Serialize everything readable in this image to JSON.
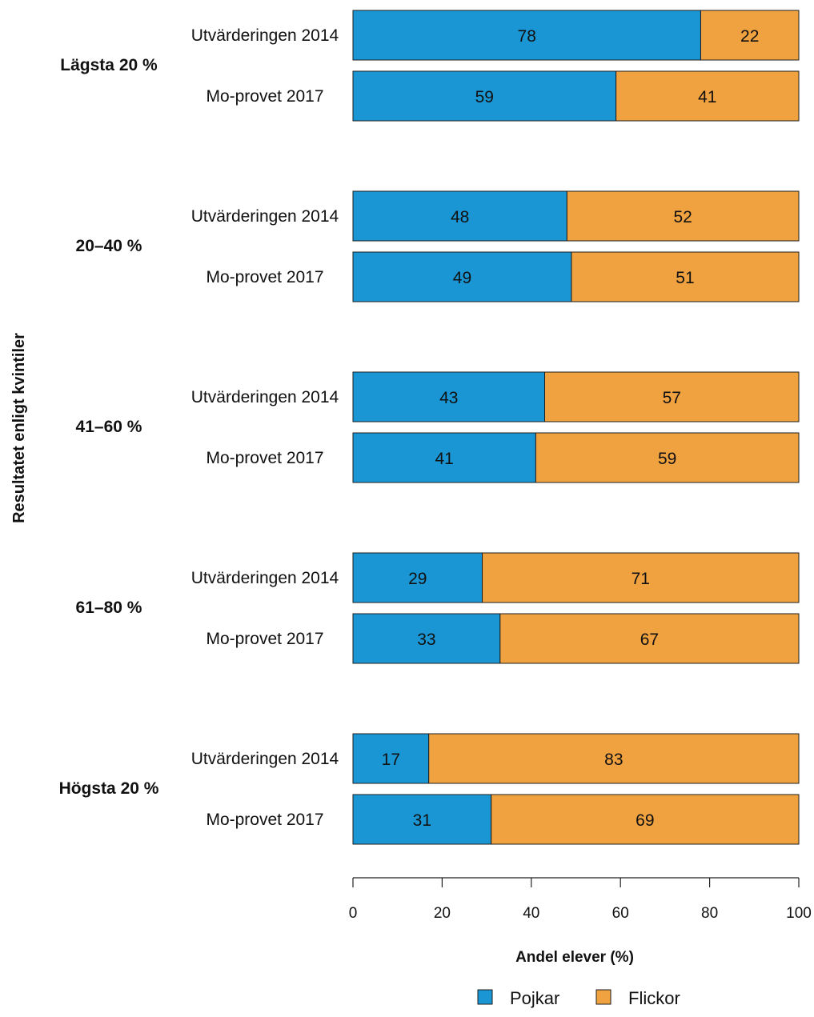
{
  "chart_data": {
    "type": "bar",
    "orientation": "horizontal",
    "stacked": true,
    "xlabel": "Andel elever (%)",
    "ylabel": "Resultatet enligt kvintiler",
    "xlim": [
      0,
      100
    ],
    "xticks": [
      "0",
      "20",
      "40",
      "60",
      "80",
      "100"
    ],
    "series": [
      {
        "name": "Pojkar",
        "color": "#1b96d4"
      },
      {
        "name": "Flickor",
        "color": "#f0a140"
      }
    ],
    "groups": [
      {
        "label": "Lägsta 20 %",
        "rows": [
          {
            "label": "Utvärderingen 2014",
            "values": [
              78,
              22
            ]
          },
          {
            "label": "Mo-provet 2017",
            "values": [
              59,
              41
            ]
          }
        ]
      },
      {
        "label": "20–40 %",
        "rows": [
          {
            "label": "Utvärderingen 2014",
            "values": [
              48,
              52
            ]
          },
          {
            "label": "Mo-provet 2017",
            "values": [
              49,
              51
            ]
          }
        ]
      },
      {
        "label": "41–60 %",
        "rows": [
          {
            "label": "Utvärderingen 2014",
            "values": [
              43,
              57
            ]
          },
          {
            "label": "Mo-provet 2017",
            "values": [
              41,
              59
            ]
          }
        ]
      },
      {
        "label": "61–80 %",
        "rows": [
          {
            "label": "Utvärderingen 2014",
            "values": [
              29,
              71
            ]
          },
          {
            "label": "Mo-provet 2017",
            "values": [
              33,
              67
            ]
          }
        ]
      },
      {
        "label": "Högsta 20 %",
        "rows": [
          {
            "label": "Utvärderingen 2014",
            "values": [
              17,
              83
            ]
          },
          {
            "label": "Mo-provet 2017",
            "values": [
              31,
              69
            ]
          }
        ]
      }
    ],
    "legend": {
      "position": "bottom-right"
    },
    "grid": false
  }
}
